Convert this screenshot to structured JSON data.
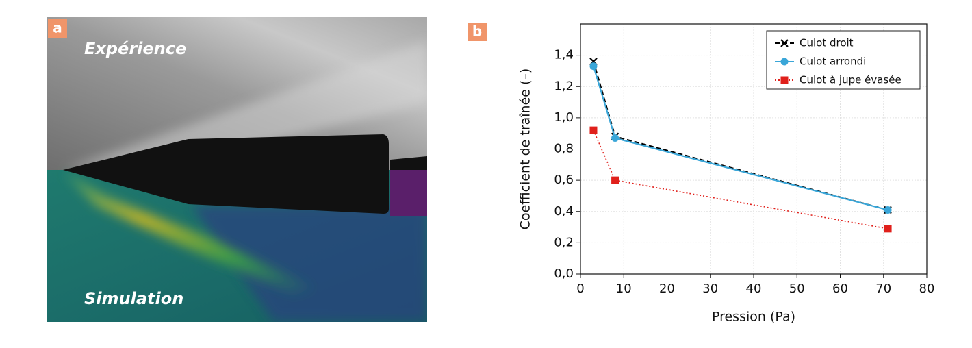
{
  "image_panel": {
    "label": "a",
    "top_text": "Expérience",
    "bottom_text": "Simulation"
  },
  "chart_data": {
    "type": "line",
    "panel_label": "b",
    "x_label": "Pression (Pa)",
    "y_label": "Coefficient de traînée (–)",
    "xlim": [
      0,
      80
    ],
    "ylim": [
      0,
      1.6
    ],
    "xticks": [
      0,
      10,
      20,
      30,
      40,
      50,
      60,
      70,
      80
    ],
    "yticks": [
      {
        "value": 0,
        "label": "0,0"
      },
      {
        "value": 0.2,
        "label": "0,2"
      },
      {
        "value": 0.4,
        "label": "0,4"
      },
      {
        "value": 0.6,
        "label": "0,6"
      },
      {
        "value": 0.8,
        "label": "0,8"
      },
      {
        "value": 1.0,
        "label": "1,0"
      },
      {
        "value": 1.2,
        "label": "1,2"
      },
      {
        "value": 1.4,
        "label": "1,4"
      }
    ],
    "grid": true,
    "legend": "upper right",
    "x": [
      3,
      8,
      71
    ],
    "series": [
      {
        "name": "Culot droit",
        "color": "#000000",
        "dash": "dashed",
        "marker": "x",
        "values": [
          1.36,
          0.88,
          0.41
        ]
      },
      {
        "name": "Culot arrondi",
        "color": "#3aa6d8",
        "dash": "solid",
        "marker": "circle",
        "values": [
          1.33,
          0.87,
          0.41
        ]
      },
      {
        "name": "Culot à jupe évasée",
        "color": "#e0201b",
        "dash": "dotted",
        "marker": "square",
        "values": [
          0.92,
          0.6,
          0.29
        ]
      }
    ]
  }
}
